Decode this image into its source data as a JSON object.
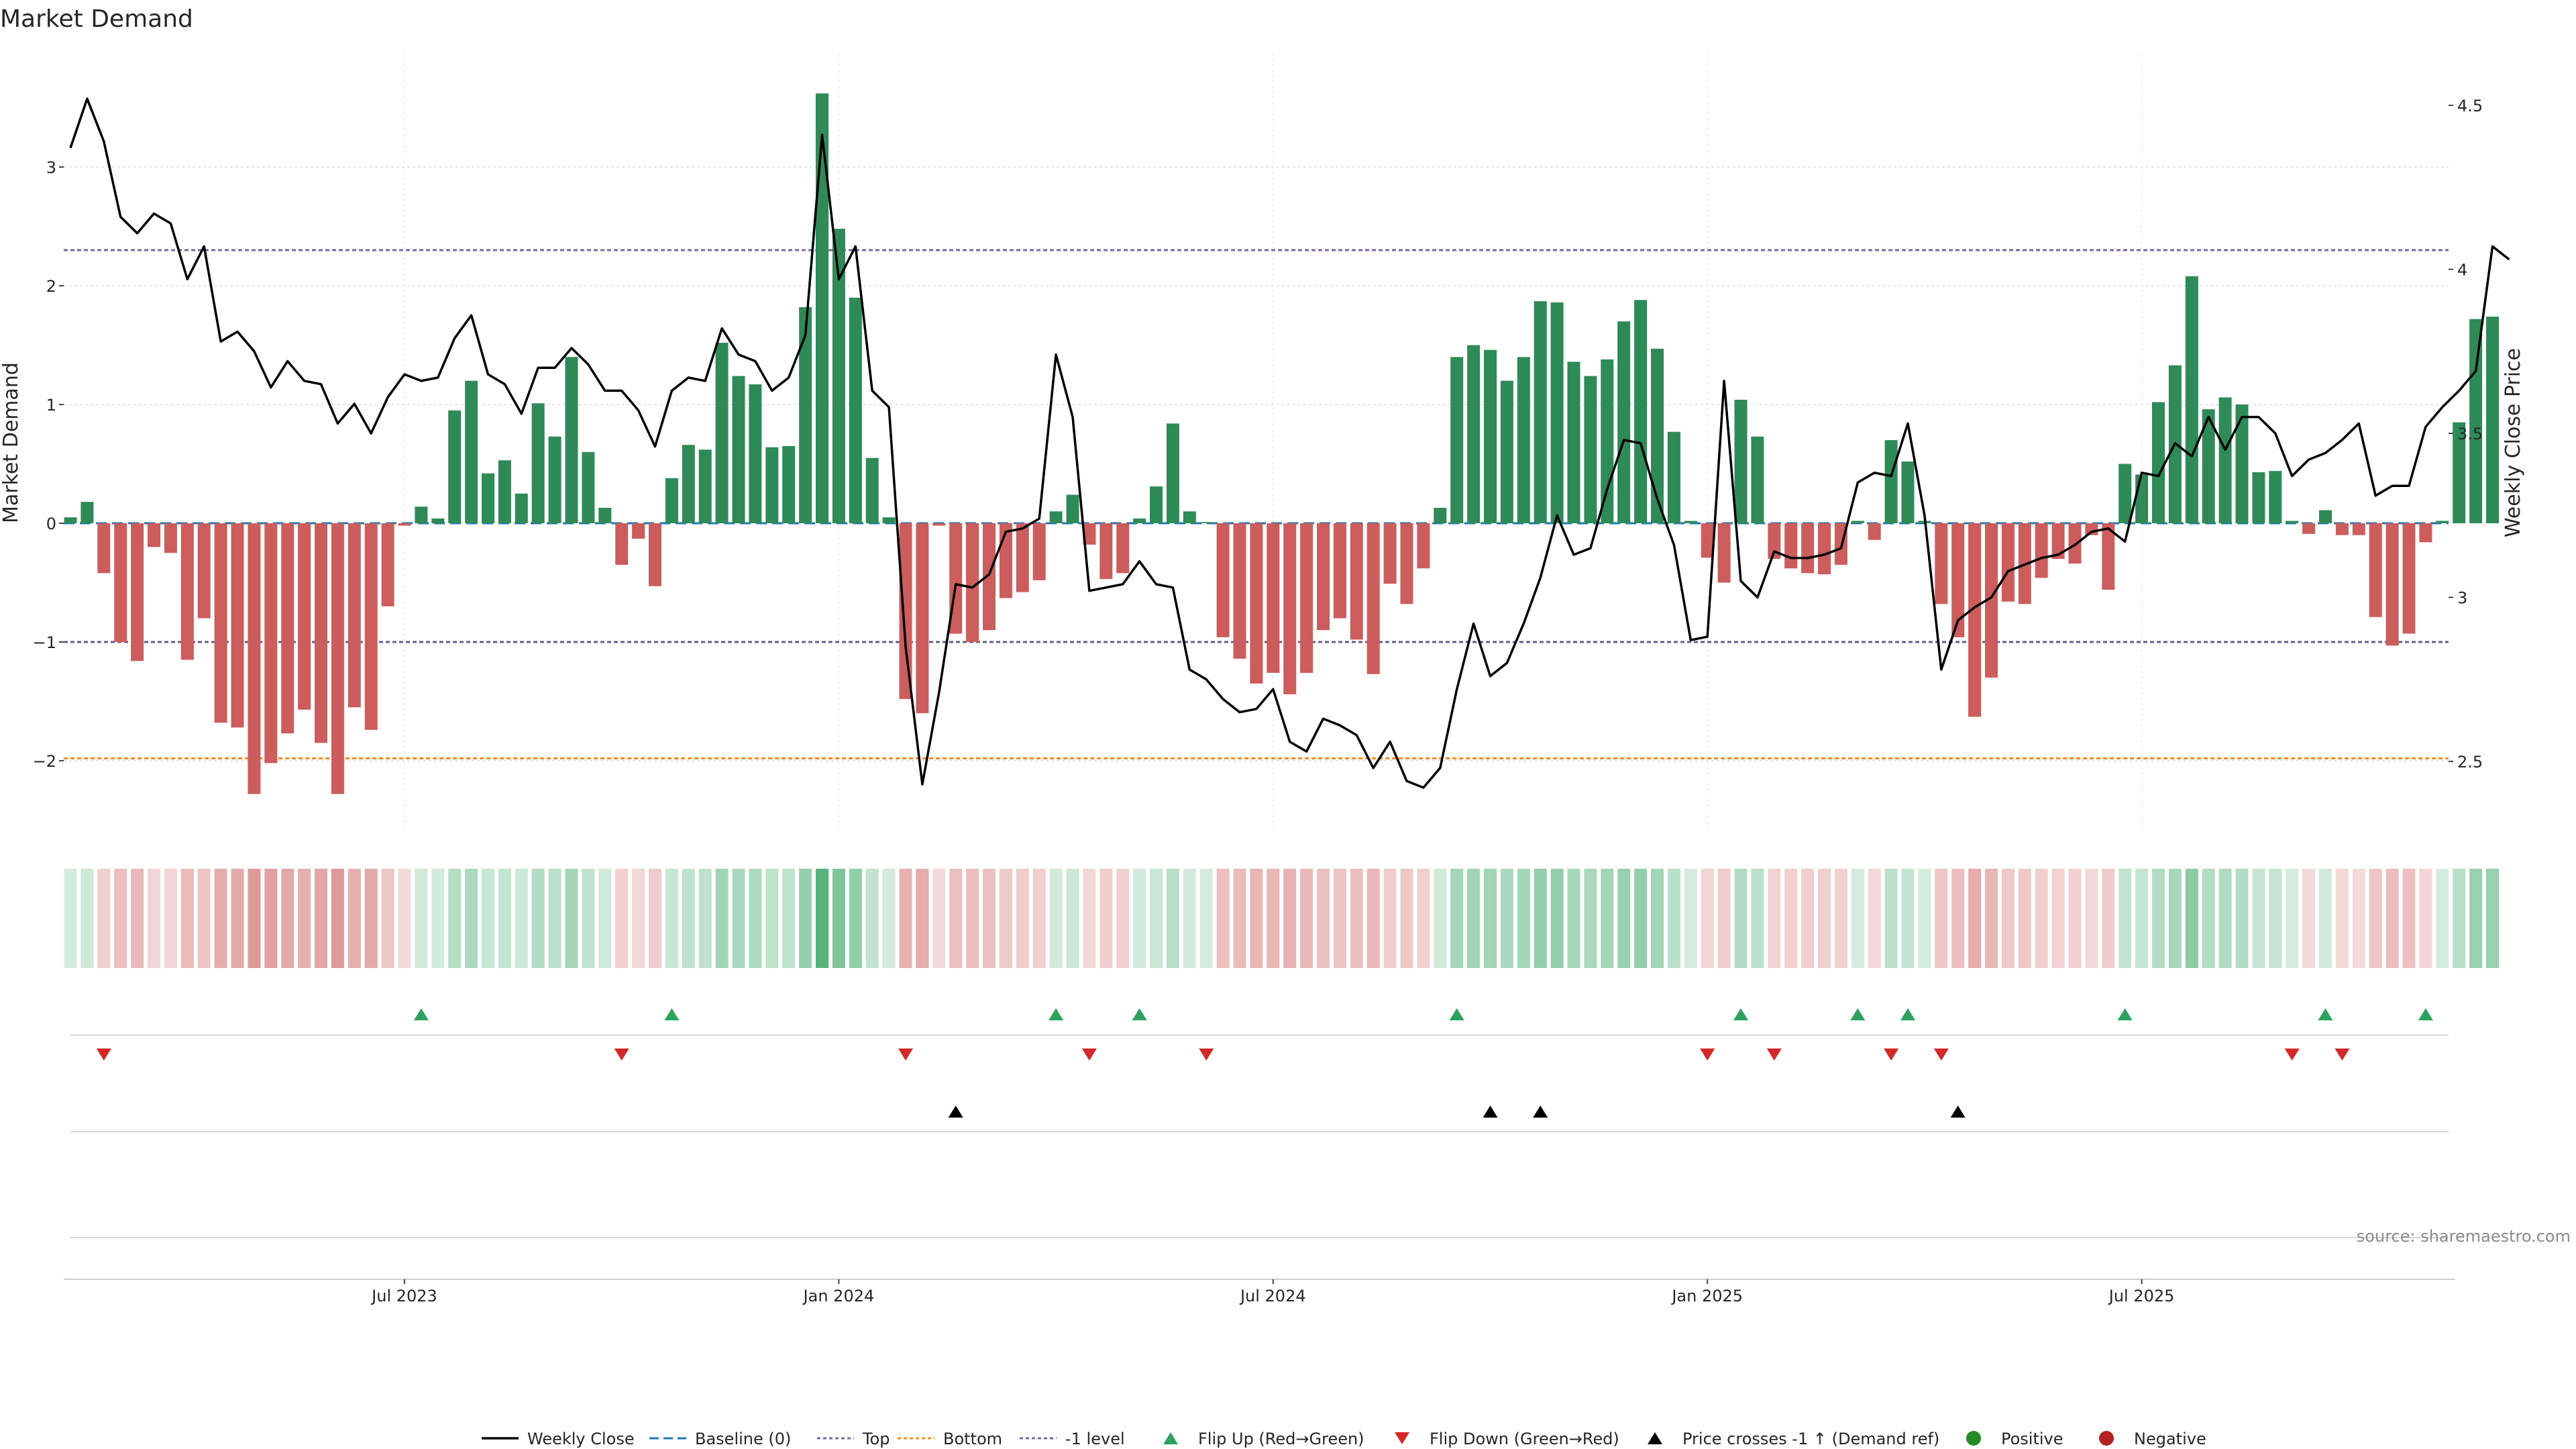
{
  "chart_data": {
    "type": "bar",
    "title": "Market Demand",
    "ylabel_left": "Market Demand",
    "ylabel_right": "Weekly Close Price",
    "ylim_left": [
      -2.6,
      3.9
    ],
    "ylim_right": [
      2.3,
      4.6
    ],
    "left_ticks": [
      {
        "value": 3,
        "label": "3"
      },
      {
        "value": 2,
        "label": "2"
      },
      {
        "value": 1,
        "label": "1"
      },
      {
        "value": 0,
        "label": "0"
      },
      {
        "value": -1,
        "label": "−1"
      },
      {
        "value": -2,
        "label": "−2"
      }
    ],
    "right_ticks": [
      {
        "value": 4.5,
        "label": "4.5"
      },
      {
        "value": 4,
        "label": "4"
      },
      {
        "value": 3.5,
        "label": "3.5"
      },
      {
        "value": 3,
        "label": "3"
      },
      {
        "value": 2.5,
        "label": "2.5"
      }
    ],
    "x_ticks": [
      {
        "index": 20,
        "label": "Jul 2023"
      },
      {
        "index": 46,
        "label": "Jan 2024"
      },
      {
        "index": 72,
        "label": "Jul 2024"
      },
      {
        "index": 98,
        "label": "Jan 2025"
      },
      {
        "index": 124,
        "label": "Jul 2025"
      }
    ],
    "reference_lines": {
      "baseline": 0,
      "top": 2.3,
      "bottom": -1.98,
      "minus_one": -1
    },
    "demand": [
      0.05,
      0.18,
      -0.42,
      -1.0,
      -1.16,
      -0.2,
      -0.25,
      -1.15,
      -0.8,
      -1.68,
      -1.72,
      -2.28,
      -2.02,
      -1.77,
      -1.57,
      -1.85,
      -2.28,
      -1.55,
      -1.74,
      -0.7,
      -0.02,
      0.14,
      0.04,
      0.95,
      1.2,
      0.42,
      0.53,
      0.25,
      1.01,
      0.73,
      1.4,
      0.6,
      0.13,
      -0.35,
      -0.13,
      -0.53,
      0.38,
      0.66,
      0.62,
      1.52,
      1.24,
      1.17,
      0.64,
      0.65,
      1.82,
      3.62,
      2.48,
      1.9,
      0.55,
      0.05,
      -1.48,
      -1.6,
      -0.02,
      -0.93,
      -1.0,
      -0.9,
      -0.63,
      -0.58,
      -0.48,
      0.1,
      0.24,
      -0.18,
      -0.47,
      -0.42,
      0.04,
      0.31,
      0.84,
      0.1,
      0.01,
      -0.96,
      -1.14,
      -1.35,
      -1.26,
      -1.44,
      -1.26,
      -0.9,
      -0.8,
      -0.98,
      -1.27,
      -0.51,
      -0.68,
      -0.38,
      0.13,
      1.4,
      1.5,
      1.46,
      1.2,
      1.4,
      1.87,
      1.86,
      1.36,
      1.24,
      1.38,
      1.7,
      1.88,
      1.47,
      0.77,
      0.02,
      -0.29,
      -0.5,
      1.04,
      0.73,
      -0.3,
      -0.38,
      -0.42,
      -0.43,
      -0.35,
      0.02,
      -0.14,
      0.7,
      0.52,
      0.02,
      -0.68,
      -0.96,
      -1.63,
      -1.3,
      -0.66,
      -0.68,
      -0.46,
      -0.3,
      -0.34,
      -0.1,
      -0.56,
      0.5,
      0.41,
      1.02,
      1.33,
      2.08,
      0.96,
      1.06,
      1.0,
      0.43,
      0.44,
      0.02,
      -0.09,
      0.11,
      -0.1,
      -0.1,
      -0.79,
      -1.03,
      -0.93,
      -0.16,
      0.02,
      0.85,
      1.72,
      1.74
    ],
    "weekly_close": [
      4.37,
      4.52,
      4.39,
      4.16,
      4.11,
      4.17,
      4.14,
      3.97,
      4.07,
      3.78,
      3.81,
      3.75,
      3.64,
      3.72,
      3.66,
      3.65,
      3.53,
      3.59,
      3.5,
      3.61,
      3.68,
      3.66,
      3.67,
      3.79,
      3.86,
      3.68,
      3.65,
      3.56,
      3.7,
      3.7,
      3.76,
      3.71,
      3.63,
      3.63,
      3.57,
      3.46,
      3.63,
      3.67,
      3.66,
      3.82,
      3.74,
      3.72,
      3.63,
      3.67,
      3.8,
      4.41,
      3.97,
      4.07,
      3.63,
      3.58,
      2.85,
      2.43,
      2.71,
      3.04,
      3.03,
      3.07,
      3.2,
      3.21,
      3.24,
      3.74,
      3.55,
      3.02,
      3.03,
      3.04,
      3.11,
      3.04,
      3.03,
      2.78,
      2.75,
      2.69,
      2.65,
      2.66,
      2.72,
      2.56,
      2.53,
      2.63,
      2.61,
      2.58,
      2.48,
      2.56,
      2.44,
      2.42,
      2.48,
      2.72,
      2.92,
      2.76,
      2.8,
      2.92,
      3.06,
      3.25,
      3.13,
      3.15,
      3.33,
      3.48,
      3.47,
      3.3,
      3.16,
      2.87,
      2.88,
      3.66,
      3.05,
      3.0,
      3.14,
      3.12,
      3.12,
      3.13,
      3.15,
      3.35,
      3.38,
      3.37,
      3.53,
      3.25,
      2.78,
      2.93,
      2.97,
      3.0,
      3.08,
      3.1,
      3.12,
      3.13,
      3.16,
      3.2,
      3.21,
      3.17,
      3.38,
      3.37,
      3.47,
      3.43,
      3.55,
      3.45,
      3.55,
      3.55,
      3.5,
      3.37,
      3.42,
      3.44,
      3.48,
      3.53,
      3.31,
      3.34,
      3.34,
      3.52,
      3.58,
      3.63,
      3.69,
      4.07,
      4.03
    ],
    "flip_up": [
      21,
      36,
      59,
      64,
      83,
      100,
      107,
      110,
      123,
      135,
      141
    ],
    "flip_down": [
      2,
      33,
      50,
      61,
      68,
      98,
      102,
      109,
      112,
      133,
      136
    ],
    "price_cross": [
      53,
      85,
      88,
      113
    ],
    "legend": [
      {
        "label": "Weekly Close",
        "icon": "solid-line"
      },
      {
        "label": "Baseline (0)",
        "icon": "dashed-line"
      },
      {
        "label": "Top",
        "icon": "dotted-line-purple"
      },
      {
        "label": "Bottom",
        "icon": "dotted-line-orange"
      },
      {
        "label": "-1 level",
        "icon": "dotted-line-purple"
      },
      {
        "label": "Flip Up (Red→Green)",
        "icon": "triangle-up-green"
      },
      {
        "label": "Flip Down (Green→Red)",
        "icon": "triangle-down-red"
      },
      {
        "label": "Price crosses -1 ↑ (Demand ref)",
        "icon": "triangle-up-black"
      },
      {
        "label": "Positive",
        "icon": "circle-green"
      },
      {
        "label": "Negative",
        "icon": "circle-red"
      }
    ],
    "source": "source: sharemaestro.com",
    "colors": {
      "positive": "#2e8b57",
      "negative": "#cd5c5c",
      "price": "#000000",
      "baseline": "#1f77b4",
      "top": "#7b68a8",
      "bottom": "#ff8c1a",
      "minus_one": "#6a5a8a",
      "flip_up": "#2ca25f",
      "flip_down": "#d62728",
      "cross": "#000000",
      "legend_positive": "#228b22",
      "legend_negative": "#b22222"
    }
  }
}
